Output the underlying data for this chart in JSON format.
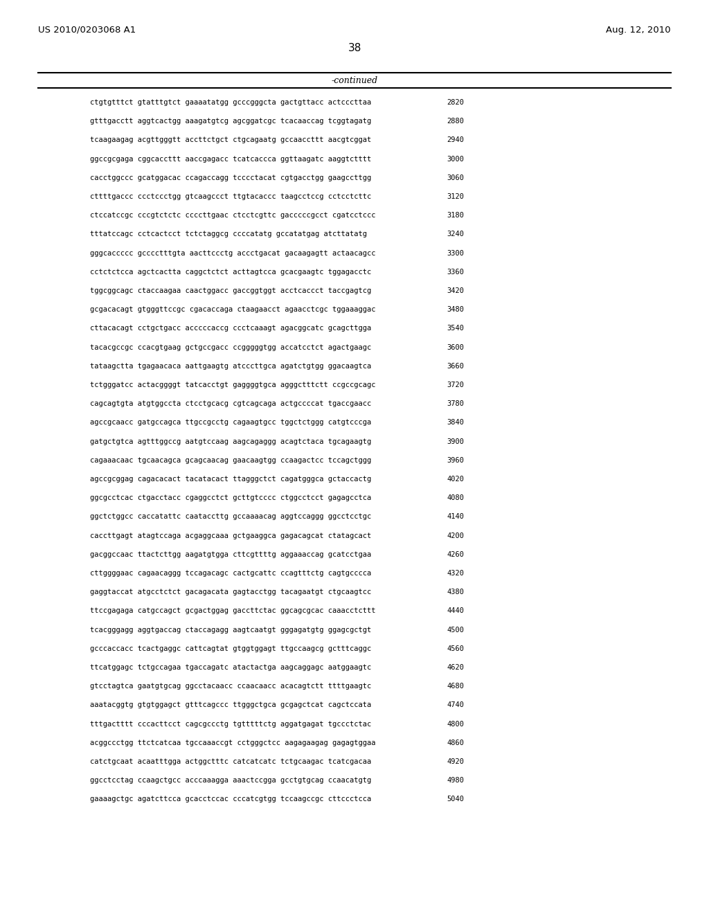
{
  "header_left": "US 2010/0203068 A1",
  "header_right": "Aug. 12, 2010",
  "page_number": "38",
  "continued_label": "-continued",
  "background_color": "#ffffff",
  "text_color": "#000000",
  "sequences": [
    [
      "ctgtgtttct gtatttgtct gaaaatatgg gcccgggcta gactgttacc actcccttaa",
      "2820"
    ],
    [
      "gtttgacctt aggtcactgg aaagatgtcg agcggatcgc tcacaaccag tcggtagatg",
      "2880"
    ],
    [
      "tcaagaagag acgttgggtt accttctgct ctgcagaatg gccaaccttt aacgtcggat",
      "2940"
    ],
    [
      "ggccgcgaga cggcaccttt aaccgagacc tcatcaccca ggttaagatc aaggtctttt",
      "3000"
    ],
    [
      "cacctggccc gcatggacac ccagaccagg tcccctacat cgtgacctgg gaagccttgg",
      "3060"
    ],
    [
      "cttttgaccc ccctccctgg gtcaagccct ttgtacaccc taagcctccg cctcctcttc",
      "3120"
    ],
    [
      "ctccatccgc cccgtctctc ccccttgaac ctcctcgttc gacccccgcct cgatcctccc",
      "3180"
    ],
    [
      "tttatccagc cctcactcct tctctaggcg ccccatatg gccatatgag atcttatatg",
      "3240"
    ],
    [
      "gggcaccccc gcccctttgta aacttccctg accctgacat gacaagagtt actaacagcc",
      "3300"
    ],
    [
      "cctctctcca agctcactta caggctctct acttagtcca gcacgaagtc tggagacctc",
      "3360"
    ],
    [
      "tggcggcagc ctaccaagaa caactggacc gaccggtggt acctcaccct taccgagtcg",
      "3420"
    ],
    [
      "gcgacacagt gtgggttccgc cgacaccaga ctaagaacct agaacctcgc tggaaaggac",
      "3480"
    ],
    [
      "cttacacagt cctgctgacc acccccaccg ccctcaaagt agacggcatc gcagcttgga",
      "3540"
    ],
    [
      "tacacgccgc ccacgtgaag gctgccgacc ccgggggtgg accatcctct agactgaagc",
      "3600"
    ],
    [
      "tataagctta tgagaacaca aattgaagtg atcccttgca agatctgtgg ggacaagtca",
      "3660"
    ],
    [
      "tctgggatcc actacggggt tatcacctgt gaggggtgca agggctttctt ccgccgcagc",
      "3720"
    ],
    [
      "cagcagtgta atgtggccta ctcctgcacg cgtcagcaga actgccccat tgaccgaacc",
      "3780"
    ],
    [
      "agccgcaacc gatgccagca ttgccgcctg cagaagtgcc tggctctggg catgtcccga",
      "3840"
    ],
    [
      "gatgctgtca agtttggccg aatgtccaag aagcagaggg acagtctaca tgcagaagtg",
      "3900"
    ],
    [
      "cagaaacaac tgcaacagca gcagcaacag gaacaagtgg ccaagactcc tccagctggg",
      "3960"
    ],
    [
      "agccgcggag cagacacact tacatacact ttagggctct cagatgggca gctaccactg",
      "4020"
    ],
    [
      "ggcgcctcac ctgacctacc cgaggcctct gcttgtcccc ctggcctcct gagagcctca",
      "4080"
    ],
    [
      "ggctctggcc caccatattc caataccttg gccaaaacag aggtccaggg ggcctcctgc",
      "4140"
    ],
    [
      "caccttgagt atagtccaga acgaggcaaa gctgaaggca gagacagcat ctatagcact",
      "4200"
    ],
    [
      "gacggccaac ttactcttgg aagatgtgga cttcgttttg aggaaaccag gcatcctgaa",
      "4260"
    ],
    [
      "cttggggaac cagaacaggg tccagacagc cactgcattc ccagtttctg cagtgcccca",
      "4320"
    ],
    [
      "gaggtaccat atgcctctct gacagacata gagtacctgg tacagaatgt ctgcaagtcc",
      "4380"
    ],
    [
      "ttccgagaga catgccagct gcgactggag gaccttctac ggcagcgcac caaacctcttt",
      "4440"
    ],
    [
      "tcacgggagg aggtgaccag ctaccagagg aagtcaatgt gggagatgtg ggagcgctgt",
      "4500"
    ],
    [
      "gcccaccacc tcactgaggc cattcagtat gtggtggagt ttgccaagcg gctttcaggc",
      "4560"
    ],
    [
      "ttcatggagc tctgccagaa tgaccagatc atactactga aagcaggagc aatggaagtc",
      "4620"
    ],
    [
      "gtcctagtca gaatgtgcag ggcctacaacc ccaacaacc acacagtctt ttttgaagtc",
      "4680"
    ],
    [
      "aaatacggtg gtgtggagct gtttcagccc ttgggctgca gcgagctcat cagctccata",
      "4740"
    ],
    [
      "tttgactttt cccacttcct cagcgccctg tgtttttctg aggatgagat tgccctctac",
      "4800"
    ],
    [
      "acggccctgg ttctcatcaa tgccaaaccgt cctgggctcc aagagaagag gagagtggaa",
      "4860"
    ],
    [
      "catctgcaat acaatttgga actggctttc catcatcatc tctgcaagac tcatcgacaa",
      "4920"
    ],
    [
      "ggcctcctag ccaagctgcc acccaaagga aaactccgga gcctgtgcag ccaacatgtg",
      "4980"
    ],
    [
      "gaaaagctgc agatcttcca gcacctccac cccatcgtgg tccaagccgc cttccctcca",
      "5040"
    ]
  ]
}
